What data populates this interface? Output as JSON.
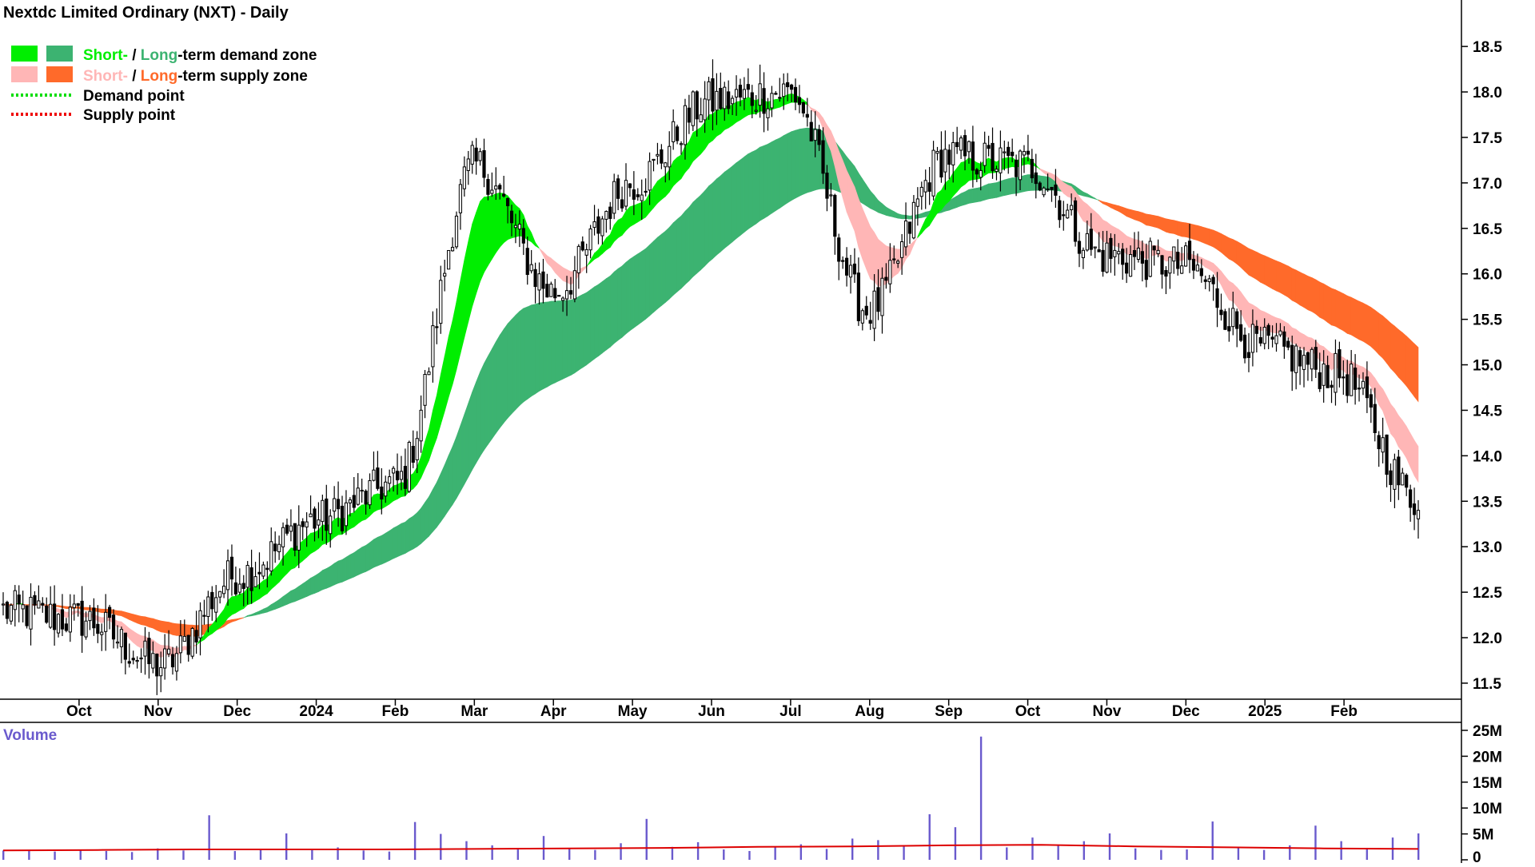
{
  "title": "Nextdc Limited Ordinary (NXT) - Daily",
  "legend": {
    "demand_zone": {
      "short": "Short-",
      "sep": " / ",
      "long": "Long",
      "rest": "-term demand zone"
    },
    "supply_zone": {
      "short": "Short-",
      "sep": " / ",
      "long": "Long",
      "rest": "-term supply zone"
    },
    "demand_point": "Demand point",
    "supply_point": "Supply point"
  },
  "colors": {
    "short_demand": "#00ee00",
    "long_demand": "#3cb371",
    "short_supply": "#ffb6b6",
    "long_supply": "#ff6a2a",
    "demand_point": "#00dd00",
    "supply_point": "#ee0000",
    "candle": "#000000",
    "volume_bar": "#6a5acd",
    "volume_ma": "#dd0000",
    "volume_label": "#6a5acd"
  },
  "volume_label": "Volume",
  "chart_data": [
    {
      "type": "line",
      "series": [
        {
          "x": [
            "Sep",
            "Oct",
            "Nov",
            "Dec",
            "Jan",
            "Feb",
            "Mar",
            "Apr",
            "May",
            "Jun",
            "Jul",
            "Aug",
            "Sep",
            "Oct",
            "Nov",
            "Dec",
            "Jan",
            "Feb",
            "Mar"
          ],
          "values": [
            12.3,
            12.2,
            11.7,
            12.7,
            13.3,
            13.7,
            17.2,
            15.8,
            17.0,
            17.9,
            18.0,
            15.6,
            17.3,
            17.2,
            16.2,
            16.1,
            15.2,
            14.9,
            13.5
          ]
        }
      ],
      "xlabel": "",
      "ylabel": "",
      "x_tick_labels": [
        "Oct",
        "Nov",
        "Dec",
        "2024",
        "Feb",
        "Mar",
        "Apr",
        "May",
        "Jun",
        "Jul",
        "Aug",
        "Sep",
        "Oct",
        "Nov",
        "Dec",
        "2025",
        "Feb"
      ],
      "y_tick_labels": [
        "11.5",
        "12.0",
        "12.5",
        "13.0",
        "13.5",
        "14.0",
        "14.5",
        "15.0",
        "15.5",
        "16.0",
        "16.5",
        "17.0",
        "17.5",
        "18.0",
        "18.5"
      ],
      "ylim": [
        11.35,
        18.8
      ],
      "last_close": 13.4,
      "axis_position": "right",
      "grid": false,
      "legend_position": "top-left"
    },
    {
      "type": "bar",
      "x_range": [
        "Sep",
        "Mar"
      ],
      "values": [
        1.8,
        1.9,
        1.6,
        2.0,
        1.7,
        1.5,
        2.2,
        1.8,
        8.6,
        1.7,
        2.1,
        5.1,
        1.9,
        2.4,
        1.8,
        1.6,
        7.3,
        5.0,
        3.6,
        2.8,
        2.0,
        4.6,
        2.3,
        1.9,
        3.2,
        7.9,
        2.5,
        3.4,
        2.0,
        1.7,
        2.6,
        3.0,
        2.1,
        4.1,
        3.8,
        2.7,
        8.8,
        6.3,
        23.8,
        2.4,
        4.3,
        2.8,
        3.6,
        5.1,
        2.2,
        1.9,
        2.0,
        7.4,
        2.4,
        1.9,
        2.8,
        6.6,
        3.6,
        2.3,
        4.3,
        5.1
      ],
      "moving_average": [
        1.8,
        1.9,
        2.0,
        2.0,
        2.0,
        2.1,
        2.2,
        2.3,
        2.5,
        2.6,
        2.8,
        2.9,
        2.6,
        2.4,
        2.2,
        2.1
      ],
      "ylabel": "Volume",
      "y_tick_labels": [
        "0",
        "5M",
        "10M",
        "15M",
        "20M",
        "25M"
      ],
      "ylim": [
        0,
        25
      ],
      "axis_position": "right",
      "grid": false
    }
  ]
}
